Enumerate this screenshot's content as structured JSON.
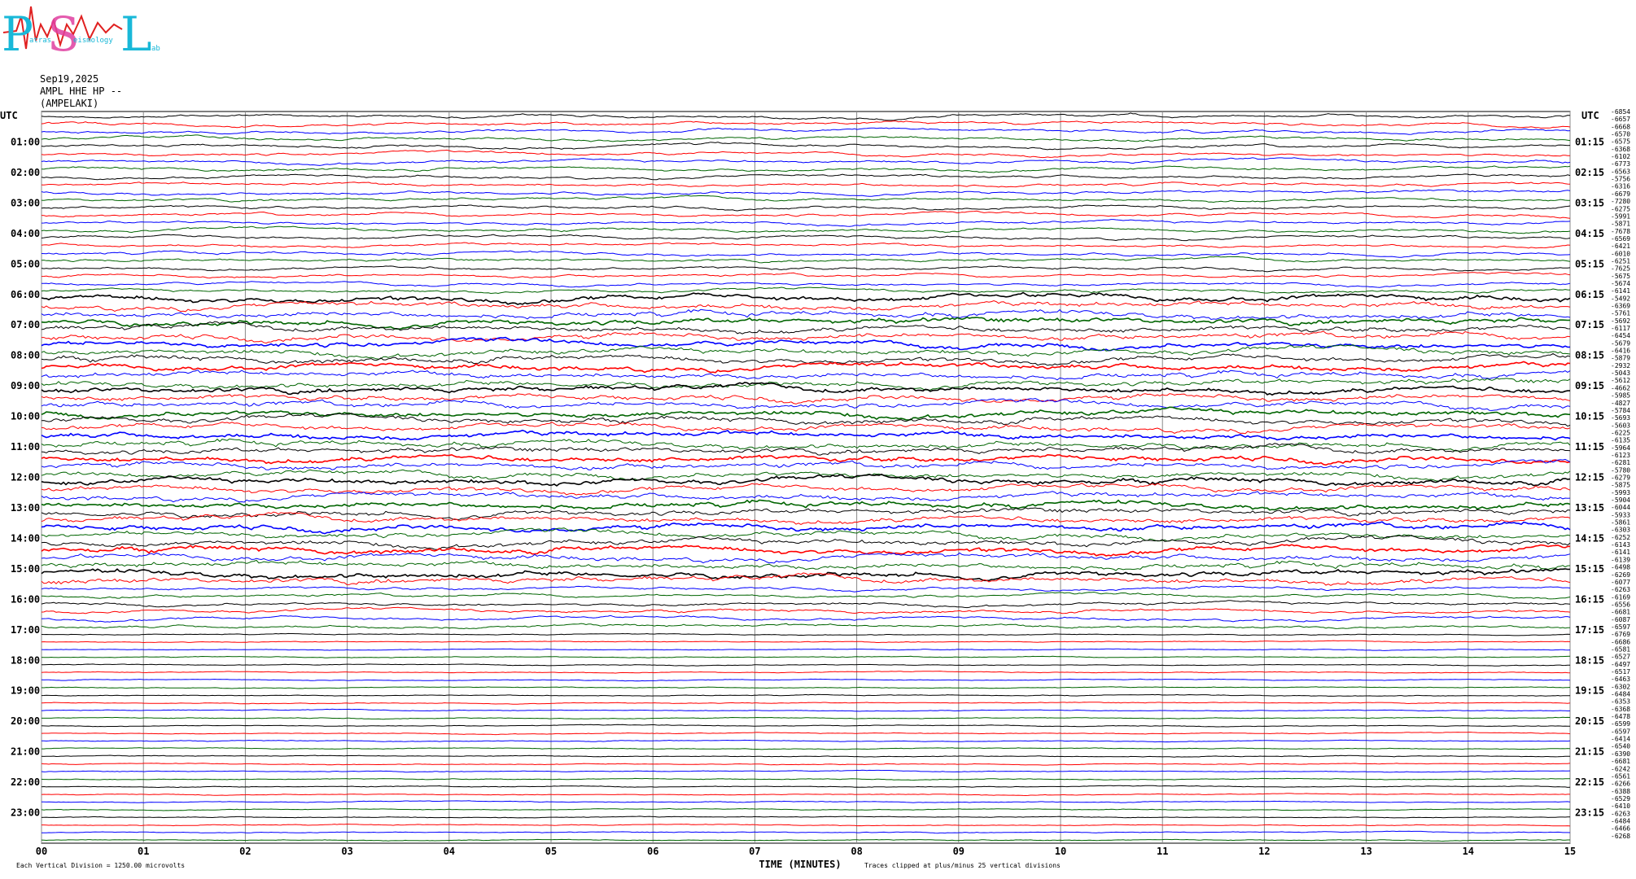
{
  "logo": {
    "p": "P",
    "s": "S",
    "l": "L",
    "p_small": "atras",
    "s_small": "eismology",
    "l_small": "ab"
  },
  "header": {
    "date": "Sep19,2025",
    "station": "AMPL HHE HP --",
    "site": "(AMPELAKI)"
  },
  "chart_data": {
    "type": "helicorder",
    "utc_left": "UTC",
    "utc_right": "UTC",
    "hours_left": [
      "01:00",
      "02:00",
      "03:00",
      "04:00",
      "05:00",
      "06:00",
      "07:00",
      "08:00",
      "09:00",
      "10:00",
      "11:00",
      "12:00",
      "13:00",
      "14:00",
      "15:00",
      "16:00",
      "17:00",
      "18:00",
      "19:00",
      "20:00",
      "21:00",
      "22:00",
      "23:00"
    ],
    "hours_right": [
      "01:15",
      "02:15",
      "03:15",
      "04:15",
      "05:15",
      "06:15",
      "07:15",
      "08:15",
      "09:15",
      "10:15",
      "11:15",
      "12:15",
      "13:15",
      "14:15",
      "15:15",
      "16:15",
      "17:15",
      "18:15",
      "19:15",
      "20:15",
      "21:15",
      "22:15",
      "23:15"
    ],
    "offsets": [
      -6854,
      -6657,
      -6668,
      -6570,
      -6575,
      -6368,
      -6102,
      -6773,
      -6563,
      -5756,
      -6316,
      -6679,
      -7280,
      -6275,
      -5991,
      -5871,
      -7678,
      -6569,
      -6421,
      -6010,
      -6251,
      -7625,
      -5675,
      -5674,
      -6141,
      -5492,
      -6369,
      -5761,
      -5692,
      -6117,
      -6454,
      -5679,
      -6416,
      -5879,
      -2932,
      -5043,
      -5612,
      -4662,
      -5985,
      -4827,
      -5784,
      -5693,
      -5603,
      -6225,
      -6135,
      -5964,
      -6123,
      -6281,
      -5780,
      -6279,
      -5875,
      -5993,
      -5904,
      -6044,
      -5933,
      -5861,
      -6303,
      -6252,
      -6143,
      -6141,
      -6139,
      -6498,
      -6269,
      -6077,
      -6263,
      -6169,
      -6556,
      -6681,
      -6087,
      -6597,
      -6769,
      -6686,
      -6581,
      -6527,
      -6497,
      -6517,
      -6463,
      -6302,
      -6484,
      -6353,
      -6368,
      -6478,
      -6599,
      -6597,
      -6414,
      -6540,
      -6390,
      -6681,
      -6242,
      -6561,
      -6266,
      -6388,
      -6529,
      -6410,
      -6263,
      -6484,
      -6466,
      -6268
    ],
    "trace_colors": [
      "#000000",
      "#ff0000",
      "#0000ff",
      "#006400"
    ],
    "xlim": [
      0,
      15
    ],
    "xticks": [
      {
        "value": 0,
        "label": "00"
      },
      {
        "value": 1,
        "label": "01"
      },
      {
        "value": 2,
        "label": "02"
      },
      {
        "value": 3,
        "label": "03"
      },
      {
        "value": 4,
        "label": "04"
      },
      {
        "value": 5,
        "label": "05"
      },
      {
        "value": 6,
        "label": "06"
      },
      {
        "value": 7,
        "label": "07"
      },
      {
        "value": 8,
        "label": "08"
      },
      {
        "value": 9,
        "label": "09"
      },
      {
        "value": 10,
        "label": "10"
      },
      {
        "value": 11,
        "label": "11"
      },
      {
        "value": 12,
        "label": "12"
      },
      {
        "value": 13,
        "label": "13"
      },
      {
        "value": 14,
        "label": "14"
      },
      {
        "value": 15,
        "label": "15"
      }
    ],
    "xlabel": "TIME (MINUTES)",
    "clip_note": "Traces clipped at plus/minus 25 vertical divisions",
    "scale_note": "Each Vertical Division = 1250.00 microvolts",
    "grid": true
  }
}
